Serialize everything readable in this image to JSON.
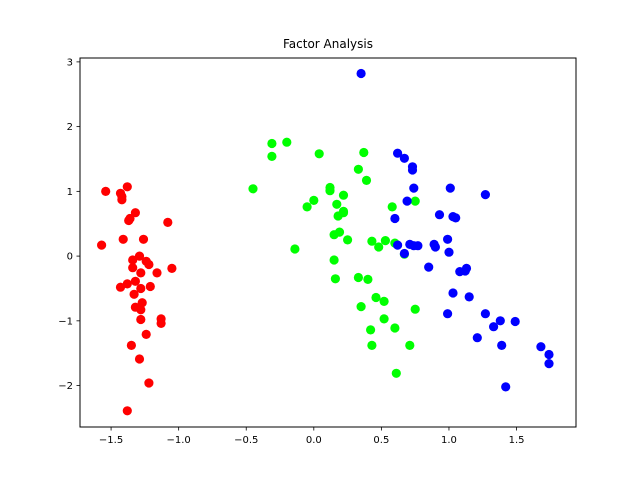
{
  "chart_data": {
    "type": "scatter",
    "title": "Factor Analysis",
    "xlabel": "",
    "ylabel": "",
    "xlim": [
      -1.73,
      1.94
    ],
    "ylim": [
      -2.64,
      3.06
    ],
    "xticks": [
      -1.5,
      -1.0,
      -0.5,
      0.0,
      0.5,
      1.0,
      1.5
    ],
    "xtick_labels": [
      "−1.5",
      "−1.0",
      "−0.5",
      "0.0",
      "0.5",
      "1.0",
      "1.5"
    ],
    "yticks": [
      -2,
      -1,
      0,
      1,
      2,
      3
    ],
    "ytick_labels": [
      "−2",
      "−1",
      "0",
      "1",
      "2",
      "3"
    ],
    "grid": false,
    "series": [
      {
        "color": "#ff0000",
        "points": [
          [
            -1.54,
            1.0
          ],
          [
            -1.43,
            0.97
          ],
          [
            -1.42,
            0.92
          ],
          [
            -1.42,
            0.87
          ],
          [
            -1.38,
            1.07
          ],
          [
            -1.36,
            0.58
          ],
          [
            -1.37,
            0.55
          ],
          [
            -1.32,
            0.67
          ],
          [
            -1.41,
            0.26
          ],
          [
            -1.57,
            0.17
          ],
          [
            -1.26,
            0.26
          ],
          [
            -1.08,
            0.52
          ],
          [
            -1.34,
            -0.06
          ],
          [
            -1.29,
            0.0
          ],
          [
            -1.24,
            -0.08
          ],
          [
            -1.22,
            -0.13
          ],
          [
            -1.34,
            -0.18
          ],
          [
            -1.16,
            -0.26
          ],
          [
            -1.28,
            -0.26
          ],
          [
            -1.05,
            -0.19
          ],
          [
            -1.38,
            -0.43
          ],
          [
            -1.43,
            -0.48
          ],
          [
            -1.32,
            -0.39
          ],
          [
            -1.21,
            -0.47
          ],
          [
            -1.28,
            -0.5
          ],
          [
            -1.33,
            -0.59
          ],
          [
            -1.27,
            -0.72
          ],
          [
            -1.32,
            -0.79
          ],
          [
            -1.28,
            -0.83
          ],
          [
            -1.28,
            -0.98
          ],
          [
            -1.13,
            -0.97
          ],
          [
            -1.13,
            -1.04
          ],
          [
            -1.24,
            -1.21
          ],
          [
            -1.35,
            -1.38
          ],
          [
            -1.29,
            -1.59
          ],
          [
            -1.22,
            -1.96
          ],
          [
            -1.38,
            -2.39
          ]
        ]
      },
      {
        "color": "#00ff00",
        "points": [
          [
            -0.45,
            1.04
          ],
          [
            -0.31,
            1.74
          ],
          [
            -0.2,
            1.76
          ],
          [
            -0.31,
            1.54
          ],
          [
            0.04,
            1.58
          ],
          [
            0.37,
            1.6
          ],
          [
            0.33,
            1.34
          ],
          [
            0.39,
            1.17
          ],
          [
            0.12,
            1.06
          ],
          [
            0.12,
            1.01
          ],
          [
            0.0,
            0.86
          ],
          [
            -0.05,
            0.76
          ],
          [
            0.17,
            0.8
          ],
          [
            0.22,
            0.94
          ],
          [
            0.22,
            0.69
          ],
          [
            0.18,
            0.62
          ],
          [
            0.22,
            0.67
          ],
          [
            0.58,
            0.76
          ],
          [
            0.75,
            0.85
          ],
          [
            0.15,
            0.33
          ],
          [
            0.19,
            0.37
          ],
          [
            0.25,
            0.25
          ],
          [
            0.43,
            0.23
          ],
          [
            0.48,
            0.14
          ],
          [
            0.53,
            0.24
          ],
          [
            0.6,
            0.2
          ],
          [
            0.67,
            0.03
          ],
          [
            -0.14,
            0.11
          ],
          [
            0.15,
            -0.06
          ],
          [
            0.16,
            -0.35
          ],
          [
            0.33,
            -0.33
          ],
          [
            0.4,
            -0.36
          ],
          [
            0.46,
            -0.64
          ],
          [
            0.52,
            -0.7
          ],
          [
            0.35,
            -0.78
          ],
          [
            0.75,
            -0.82
          ],
          [
            0.52,
            -0.97
          ],
          [
            0.6,
            -1.11
          ],
          [
            0.42,
            -1.14
          ],
          [
            0.43,
            -1.38
          ],
          [
            0.71,
            -1.38
          ],
          [
            0.61,
            -1.81
          ]
        ]
      },
      {
        "color": "#0000ff",
        "points": [
          [
            0.35,
            2.82
          ],
          [
            0.62,
            1.59
          ],
          [
            0.67,
            1.51
          ],
          [
            0.73,
            1.38
          ],
          [
            0.73,
            1.33
          ],
          [
            0.74,
            1.05
          ],
          [
            1.01,
            1.05
          ],
          [
            1.27,
            0.95
          ],
          [
            0.69,
            0.85
          ],
          [
            0.6,
            0.58
          ],
          [
            0.93,
            0.64
          ],
          [
            1.03,
            0.61
          ],
          [
            1.05,
            0.59
          ],
          [
            0.62,
            0.17
          ],
          [
            0.71,
            0.18
          ],
          [
            0.74,
            0.16
          ],
          [
            0.77,
            0.16
          ],
          [
            0.89,
            0.18
          ],
          [
            0.9,
            0.14
          ],
          [
            0.99,
            0.26
          ],
          [
            1.0,
            0.06
          ],
          [
            0.67,
            0.04
          ],
          [
            0.85,
            -0.17
          ],
          [
            1.13,
            -0.19
          ],
          [
            1.12,
            -0.23
          ],
          [
            1.08,
            -0.24
          ],
          [
            1.03,
            -0.57
          ],
          [
            1.15,
            -0.63
          ],
          [
            0.99,
            -0.89
          ],
          [
            1.27,
            -0.89
          ],
          [
            1.38,
            -1.0
          ],
          [
            1.49,
            -1.01
          ],
          [
            1.33,
            -1.09
          ],
          [
            1.21,
            -1.26
          ],
          [
            1.39,
            -1.38
          ],
          [
            1.68,
            -1.4
          ],
          [
            1.74,
            -1.52
          ],
          [
            1.74,
            -1.66
          ],
          [
            1.42,
            -2.02
          ]
        ]
      }
    ]
  }
}
